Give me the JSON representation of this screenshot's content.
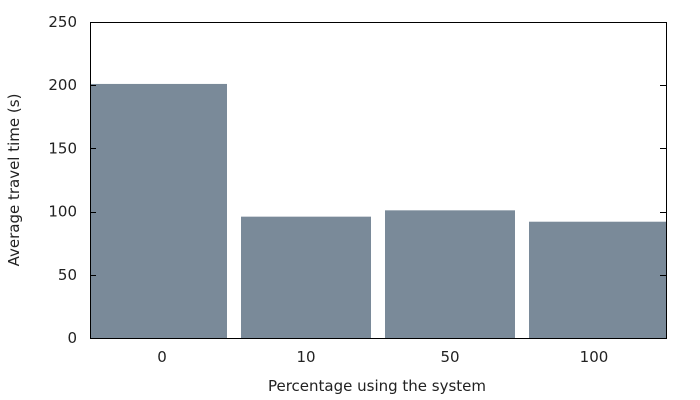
{
  "chart_data": {
    "type": "bar",
    "categories": [
      "0",
      "10",
      "50",
      "100"
    ],
    "values": [
      201,
      96,
      101,
      92
    ],
    "xlabel": "Percentage using the system",
    "ylabel": "Average travel time (s)",
    "ylim": [
      0,
      250
    ],
    "yticks": [
      0,
      50,
      100,
      150,
      200,
      250
    ],
    "grid": false,
    "bar_color": "#7a8a99"
  }
}
